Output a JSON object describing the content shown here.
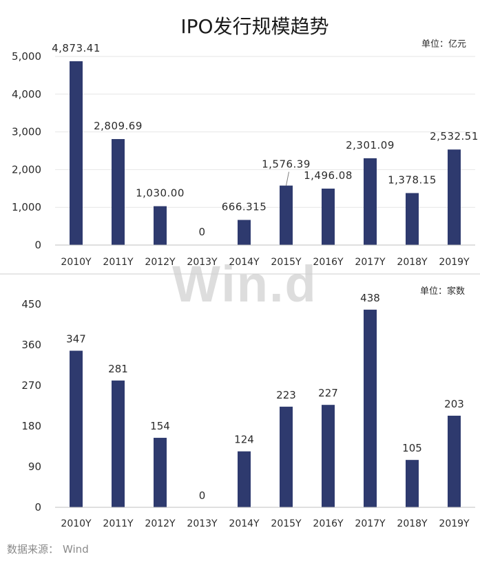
{
  "page": {
    "watermark_text": "Win.d",
    "source_label": "数据来源：",
    "source_name": "Wind"
  },
  "colors": {
    "bar": "#2e3a6e",
    "axis": "#bfbfbf",
    "grid": "#e6e6e6",
    "text": "#2b2b2b"
  },
  "chart_data": [
    {
      "type": "bar",
      "title": "IPO发行规模趋势",
      "unit": "单位：亿元",
      "categories": [
        "2010Y",
        "2011Y",
        "2012Y",
        "2013Y",
        "2014Y",
        "2015Y",
        "2016Y",
        "2017Y",
        "2018Y",
        "2019Y"
      ],
      "values": [
        4873.41,
        2809.69,
        1030.0,
        0,
        666.315,
        1576.39,
        1496.08,
        2301.09,
        1378.15,
        2532.51
      ],
      "data_labels": [
        "4,873.41",
        "2,809.69",
        "1,030.00",
        "0",
        "666.315",
        "1,576.39",
        "1,496.08",
        "2,301.09",
        "1,378.15",
        "2,532.51"
      ],
      "yticks": [
        0,
        1000,
        2000,
        3000,
        4000,
        5000
      ],
      "ytick_labels": [
        "0",
        "1,000",
        "2,000",
        "3,000",
        "4,000",
        "5,000"
      ],
      "ylim": [
        0,
        5000
      ],
      "grid": true
    },
    {
      "type": "bar",
      "title": "",
      "unit": "单位：家数",
      "categories": [
        "2010Y",
        "2011Y",
        "2012Y",
        "2013Y",
        "2014Y",
        "2015Y",
        "2016Y",
        "2017Y",
        "2018Y",
        "2019Y"
      ],
      "values": [
        347,
        281,
        154,
        0,
        124,
        223,
        227,
        438,
        105,
        203
      ],
      "data_labels": [
        "347",
        "281",
        "154",
        "0",
        "124",
        "223",
        "227",
        "438",
        "105",
        "203"
      ],
      "yticks": [
        0,
        90,
        180,
        270,
        360,
        450
      ],
      "ytick_labels": [
        "0",
        "90",
        "180",
        "270",
        "360",
        "450"
      ],
      "ylim": [
        0,
        450
      ],
      "grid": false
    }
  ]
}
